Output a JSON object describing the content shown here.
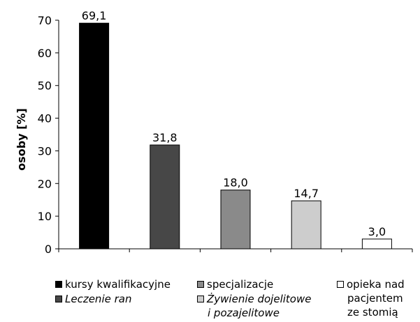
{
  "chart_data": {
    "type": "bar",
    "ylabel": "osoby [%]",
    "xlabel": "",
    "ylim": [
      0,
      70
    ],
    "yticks": [
      "0",
      "10",
      "20",
      "30",
      "40",
      "50",
      "60",
      "70"
    ],
    "grid": false,
    "legend_position": "bottom",
    "categories": [
      "kursy kwalifikacyjne",
      "Leczenie ran",
      "specjalizacje",
      "Żywienie dojelitowe i pozajelitowe",
      "opieka nad pacjentem ze stomią"
    ],
    "values": [
      69.1,
      31.8,
      18.0,
      14.7,
      3.0
    ],
    "data_labels": [
      "69,1",
      "31,8",
      "18,0",
      "14,7",
      "3,0"
    ],
    "colors": [
      "#000000",
      "#474747",
      "#8a8a8a",
      "#cdcdcd",
      "#ffffff"
    ]
  },
  "legend": {
    "items": [
      {
        "lines": [
          "kursy kwalifikacyjne"
        ],
        "italic": false
      },
      {
        "lines": [
          "Leczenie ran"
        ],
        "italic": true
      },
      {
        "lines": [
          "specjalizacje"
        ],
        "italic": false
      },
      {
        "lines": [
          "Żywienie dojelitowe",
          "i pozajelitowe"
        ],
        "italic": true
      },
      {
        "lines": [
          "opieka nad",
          "pacjentem",
          "ze stomią"
        ],
        "italic": false
      }
    ]
  }
}
